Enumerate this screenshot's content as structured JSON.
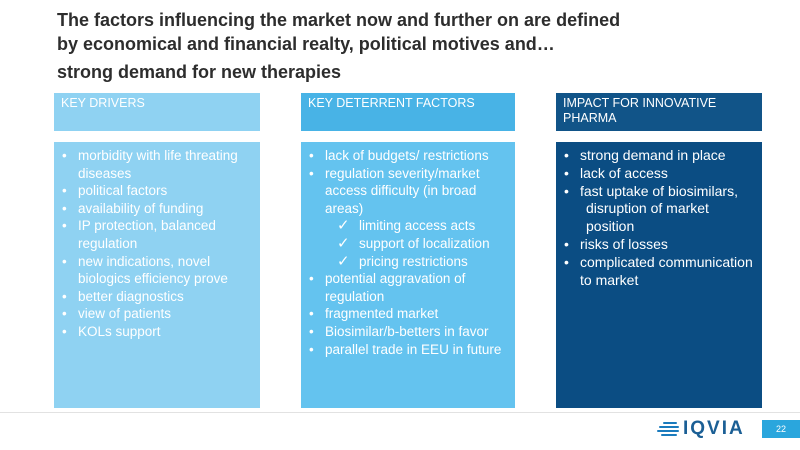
{
  "title": {
    "line1": "The factors influencing the market now and further on are defined",
    "line2": "by economical and financial realty, political motives and…",
    "line3": "strong demand for new therapies"
  },
  "columns": {
    "drivers": {
      "header": "KEY DRIVERS",
      "items": [
        {
          "type": "bullet",
          "text": "morbidity with life threating diseases"
        },
        {
          "type": "bullet",
          "text": "political factors"
        },
        {
          "type": "bullet",
          "text": "availability of funding"
        },
        {
          "type": "bullet",
          "text": "IP protection, balanced regulation"
        },
        {
          "type": "bullet",
          "text": "new indications, novel biologics efficiency prove"
        },
        {
          "type": "bullet",
          "text": "better diagnostics"
        },
        {
          "type": "bullet",
          "text": "view of patients"
        },
        {
          "type": "bullet",
          "text": "KOLs support"
        }
      ]
    },
    "deterrents": {
      "header": "KEY DETERRENT FACTORS",
      "items": [
        {
          "type": "bullet",
          "text": "lack of budgets/ restrictions"
        },
        {
          "type": "bullet",
          "text": "regulation severity/market access difficulty (in broad areas)"
        },
        {
          "type": "sub",
          "text": "limiting access acts"
        },
        {
          "type": "sub",
          "text": "support of localization"
        },
        {
          "type": "sub",
          "text": "pricing restrictions"
        },
        {
          "type": "bullet",
          "text": "potential aggravation of regulation"
        },
        {
          "type": "bullet",
          "text": "fragmented market"
        },
        {
          "type": "bullet",
          "text": "Biosimilar/b-betters in favor"
        },
        {
          "type": "bullet",
          "text": "parallel trade in EEU in future"
        }
      ]
    },
    "impact": {
      "header": "IMPACT FOR INNOVATIVE PHARMA",
      "items": [
        {
          "type": "bullet",
          "text": "strong demand in place"
        },
        {
          "type": "bullet",
          "text": "lack of access"
        },
        {
          "type": "bullet",
          "text": "fast uptake of biosimilars,"
        },
        {
          "type": "cont",
          "text": "disruption of market position"
        },
        {
          "type": "bullet",
          "text": "risks of losses"
        },
        {
          "type": "bullet",
          "text": "complicated communication to market"
        }
      ]
    }
  },
  "footer": {
    "logo_text": "IQVIA",
    "page_number": "22"
  },
  "colors": {
    "drivers": "#8fd2f2",
    "deterrents_header": "#48b3e6",
    "deterrents_body": "#64c3ef",
    "impact": "#0b4d83"
  }
}
